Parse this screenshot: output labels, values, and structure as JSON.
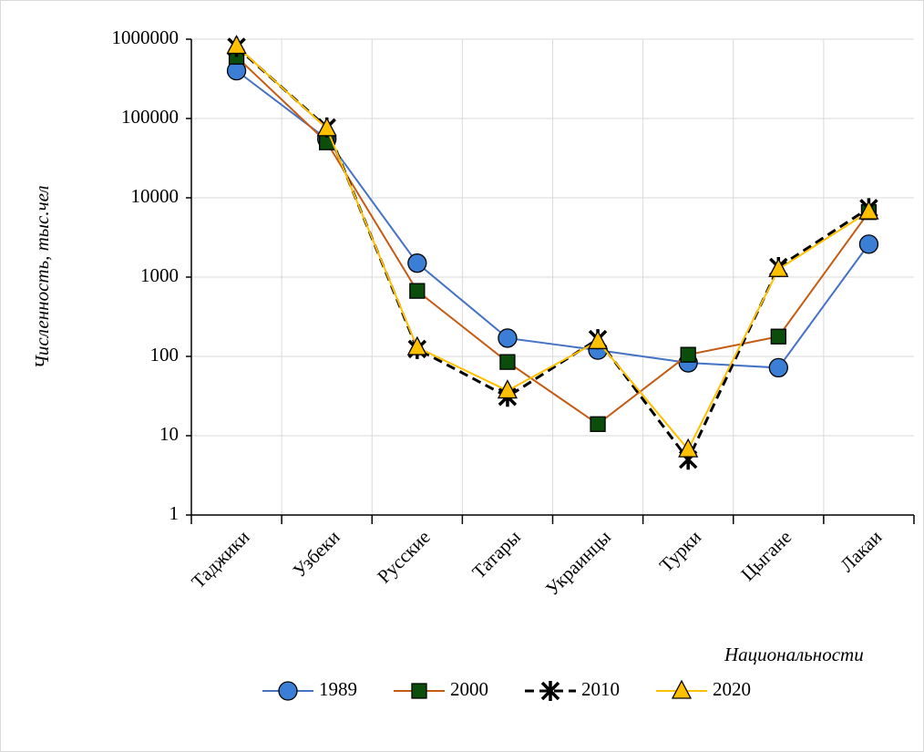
{
  "chart_data": {
    "type": "line",
    "y_label": "Численность, тыс.чел",
    "x_label": "Национальности",
    "categories": [
      "Таджики",
      "Узбеки",
      "Русские",
      "Татары",
      "Украинцы",
      "Турки",
      "Цыгане",
      "Лакаи"
    ],
    "log_scale": true,
    "grid": true,
    "legend": "bottom",
    "ylim": [
      1,
      1000000
    ],
    "yticks": [
      1,
      10,
      100,
      1000,
      10000,
      100000,
      1000000
    ],
    "series": [
      {
        "name": "1989",
        "color": "#4472c4",
        "marker": "circle",
        "marker_color": "#3a7fd5",
        "dashed": false,
        "values": [
          400000,
          55000,
          1500,
          170,
          120,
          83,
          72,
          2600
        ]
      },
      {
        "name": "2000",
        "color": "#c55a11",
        "marker": "square",
        "marker_color": "#0b4d0b",
        "dashed": false,
        "values": [
          600000,
          50000,
          670,
          85,
          14,
          105,
          178,
          6600
        ]
      },
      {
        "name": "2010",
        "color": "#000000",
        "marker": "asterisk",
        "marker_color": "#000000",
        "dashed": true,
        "values": [
          800000,
          77000,
          124,
          31,
          165,
          5,
          1340,
          7400
        ]
      },
      {
        "name": "2020",
        "color": "#ffc000",
        "marker": "triangle",
        "marker_color": "#ffc000",
        "dashed": false,
        "values": [
          820000,
          75000,
          130,
          37,
          155,
          6.7,
          1260,
          6700
        ]
      }
    ]
  }
}
